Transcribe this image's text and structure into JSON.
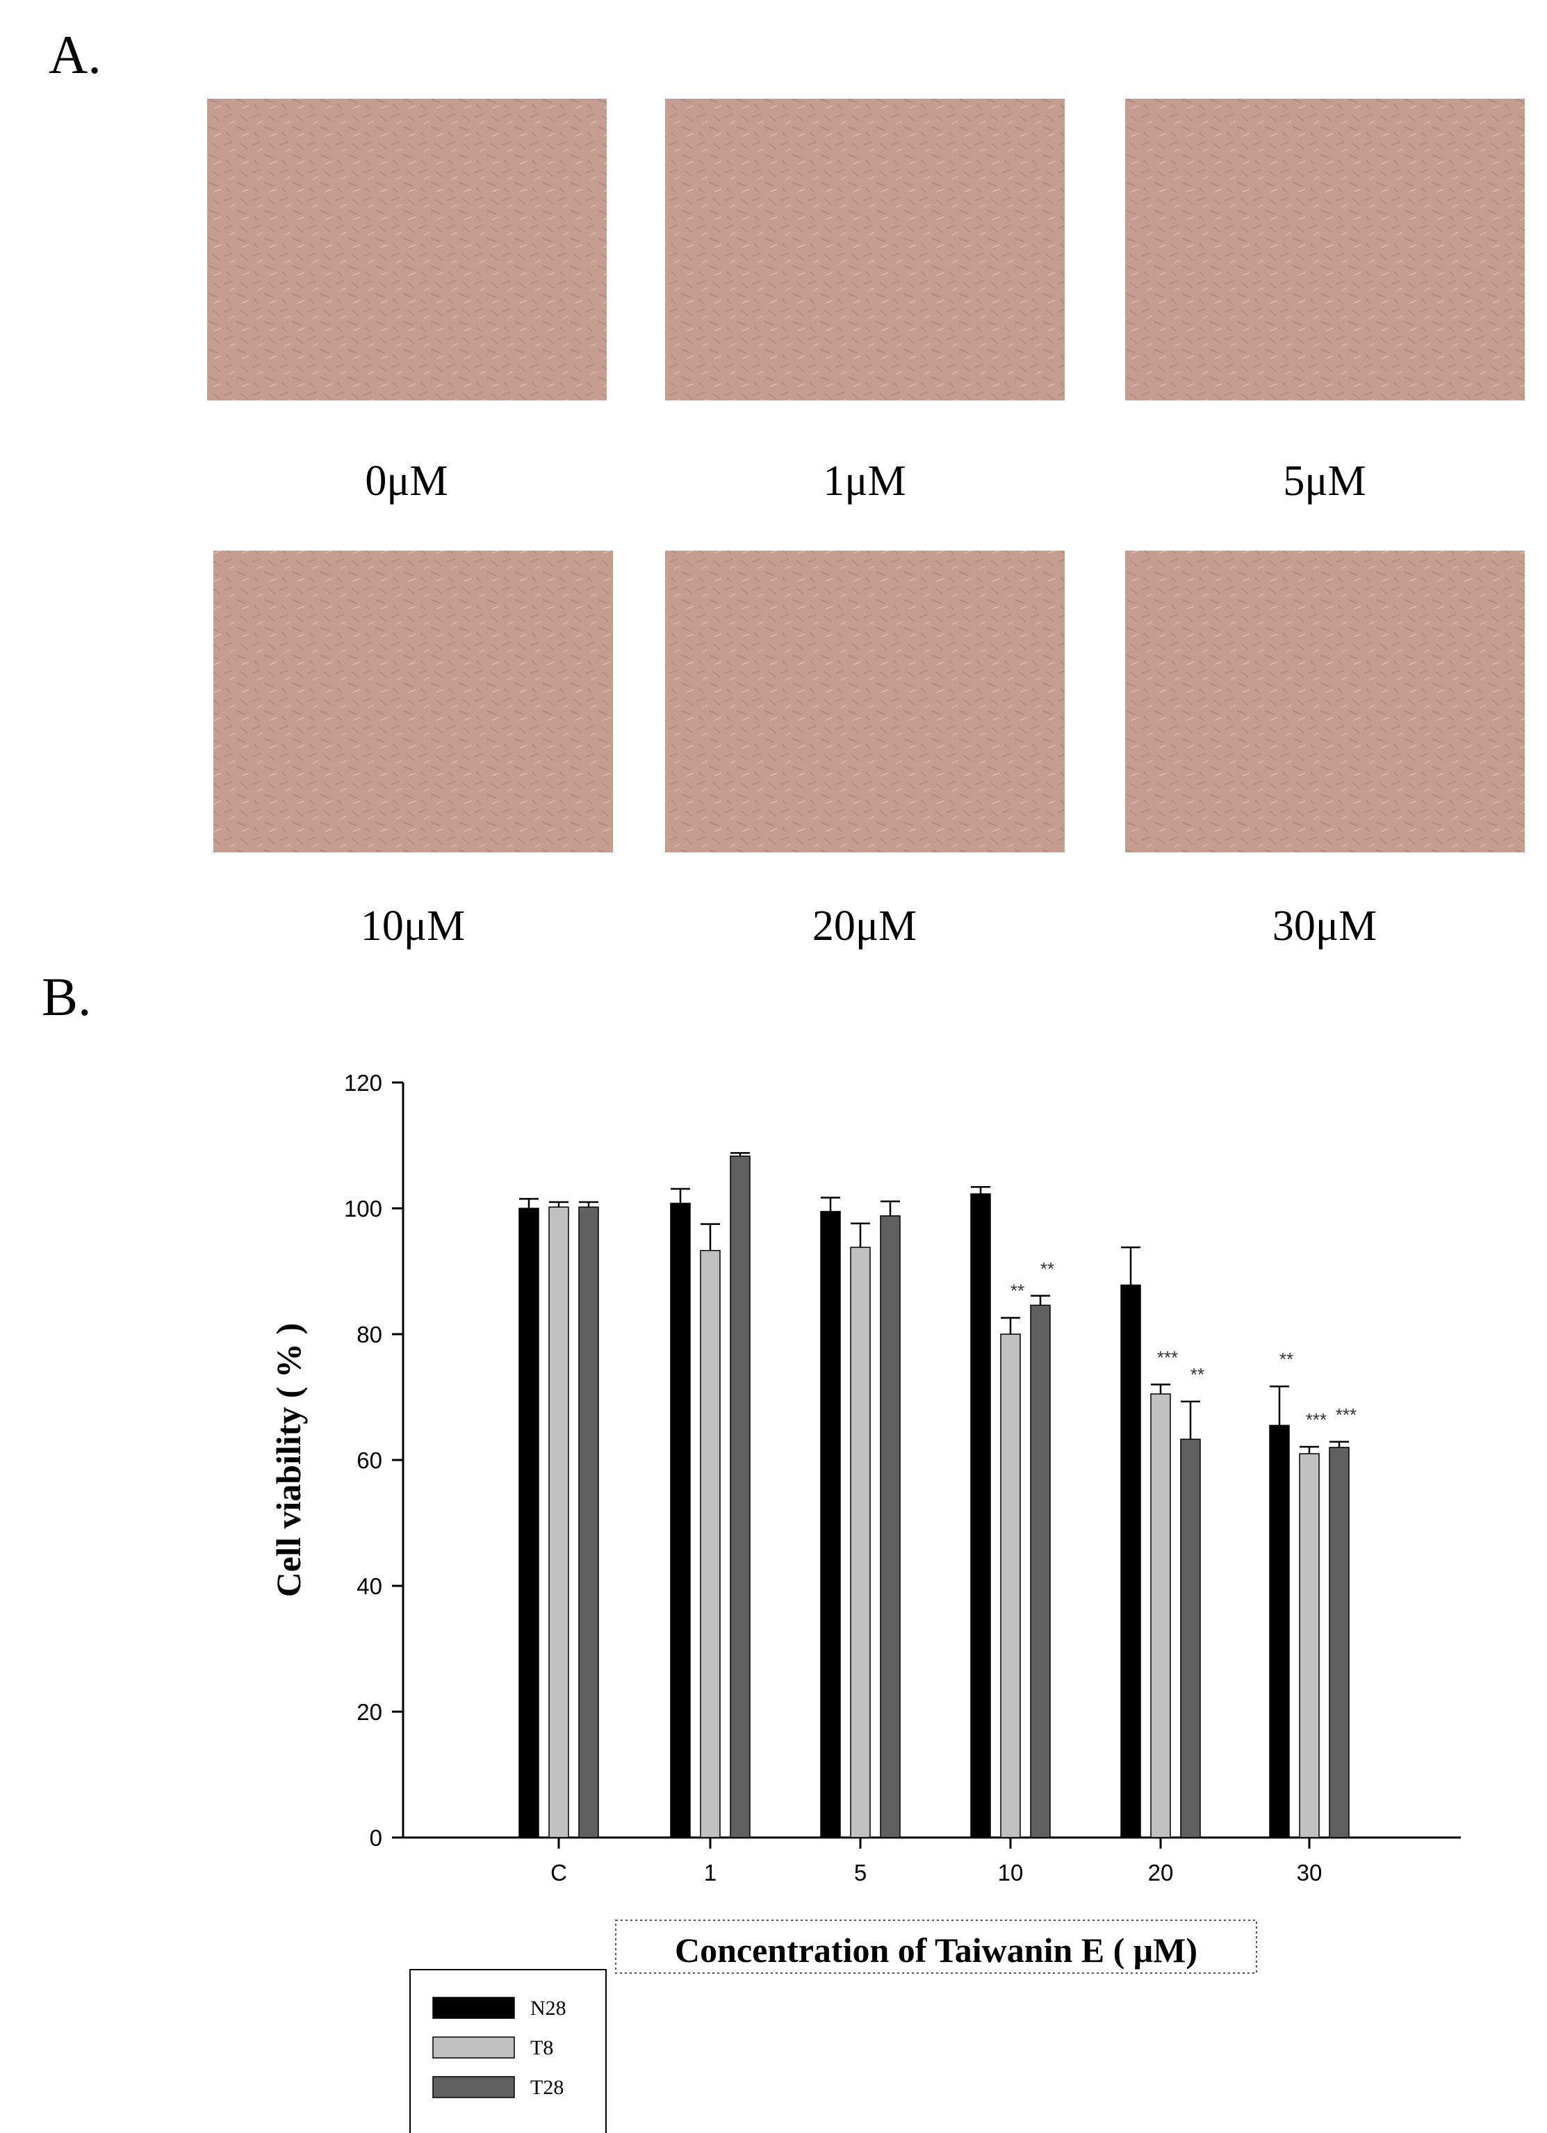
{
  "figure": {
    "panel_a_label": "A.",
    "panel_b_label": "B.",
    "micrographs": [
      "0μM",
      "1μM",
      "5μM",
      "10μM",
      "20μM",
      "30μM"
    ]
  },
  "chart_data": {
    "type": "bar",
    "y_label": "Cell viability ( % )",
    "x_label": "Concentration of Taiwanin E ( μM)",
    "categories": [
      "C",
      "1",
      "5",
      "10",
      "20",
      "30"
    ],
    "series": [
      {
        "name": "N28",
        "color": "#000000",
        "values": [
          100,
          100.8,
          99.5,
          102.3,
          87.8,
          65.5
        ],
        "errors": [
          1.5,
          2.3,
          2.2,
          1.1,
          6,
          6.2
        ],
        "annotations": [
          null,
          null,
          null,
          null,
          null,
          "**"
        ]
      },
      {
        "name": "T8",
        "color": "#c0c0c0",
        "values": [
          100.2,
          93.3,
          93.8,
          80,
          70.5,
          61
        ],
        "errors": [
          0.8,
          4.2,
          3.8,
          2.6,
          1.5,
          1.1
        ],
        "annotations": [
          null,
          null,
          null,
          "**",
          "***",
          "***"
        ]
      },
      {
        "name": "T28",
        "color": "#606060",
        "values": [
          100.2,
          108.3,
          98.8,
          84.6,
          63.3,
          62
        ],
        "errors": [
          0.8,
          0.5,
          2.3,
          1.5,
          6,
          0.9
        ],
        "annotations": [
          null,
          null,
          null,
          "**",
          "**",
          "***"
        ]
      }
    ],
    "ylim": [
      0,
      120
    ],
    "yticks": [
      0,
      20,
      40,
      60,
      80,
      100,
      120
    ]
  }
}
